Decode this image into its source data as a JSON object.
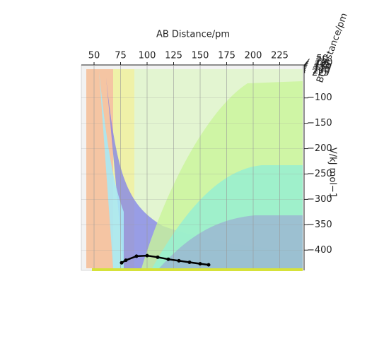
{
  "chart_data": {
    "type": "surface3d",
    "xlabel": "AB Distance/pm",
    "ylabel": "BC Distance/pm",
    "zlabel": "V/kJ mol−1",
    "xlim": [
      38,
      248
    ],
    "xticks": [
      50,
      75,
      100,
      125,
      150,
      175,
      200,
      225
    ],
    "ylim": [
      38,
      248
    ],
    "yticks": [
      50,
      75,
      100,
      125,
      150,
      175,
      200,
      225
    ],
    "zlim": [
      -440,
      -35
    ],
    "zticks": [
      {
        "value": -100,
        "label": "−100"
      },
      {
        "value": -150,
        "label": "−150"
      },
      {
        "value": -200,
        "label": "−200"
      },
      {
        "value": -250,
        "label": "−250"
      },
      {
        "value": -300,
        "label": "−300"
      },
      {
        "value": -350,
        "label": "−350"
      },
      {
        "value": -400,
        "label": "−400"
      }
    ],
    "grid": true,
    "trajectory_color": "#000000",
    "x": [
      76,
      80,
      90,
      100,
      110,
      120,
      130,
      140,
      150,
      158
    ],
    "values": [
      -425,
      -420,
      -412,
      -411,
      -414,
      -418,
      -421,
      -424,
      -427,
      -429
    ]
  }
}
